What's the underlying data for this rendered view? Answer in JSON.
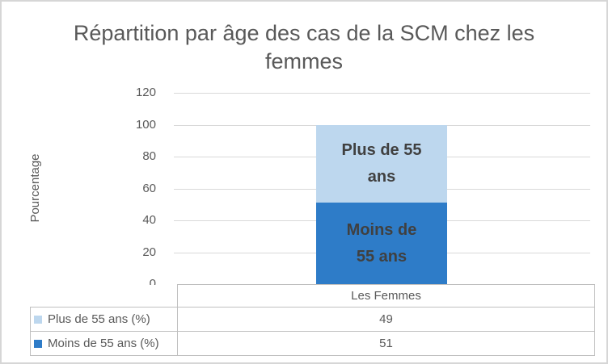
{
  "chart_data": {
    "type": "bar",
    "stacked": true,
    "title": "Répartition par âge des cas de la SCM chez les femmes",
    "title_lines": [
      "Répartition par âge des cas de la SCM chez les",
      "femmes"
    ],
    "ylabel": "Pourcentage",
    "xlabel": "",
    "categories": [
      "Les Femmes"
    ],
    "series": [
      {
        "name": "Plus de 55 ans (%)",
        "values": [
          49
        ],
        "color": "#BDD7EE",
        "label_lines": [
          "Plus de 55",
          "ans"
        ]
      },
      {
        "name": "Moins de 55 ans (%)",
        "values": [
          51
        ],
        "color": "#2E7CC8",
        "label_lines": [
          "Moins de",
          "55 ans"
        ]
      }
    ],
    "ylim": [
      0,
      120
    ],
    "yticks": [
      0,
      20,
      40,
      60,
      80,
      100,
      120
    ],
    "grid": true,
    "legend_position": "data-table-left",
    "data_table_shown": true,
    "colors": {
      "plus_55_fill": "#BDD7EE",
      "moins_55_fill": "#2E7CC8",
      "title_text": "#595959",
      "axis_text": "#595959",
      "bar_label_text": "#404040",
      "gridline": "#D9D9D9",
      "table_border": "#BFBFBF",
      "outer_border": "#D6D6D6"
    }
  }
}
